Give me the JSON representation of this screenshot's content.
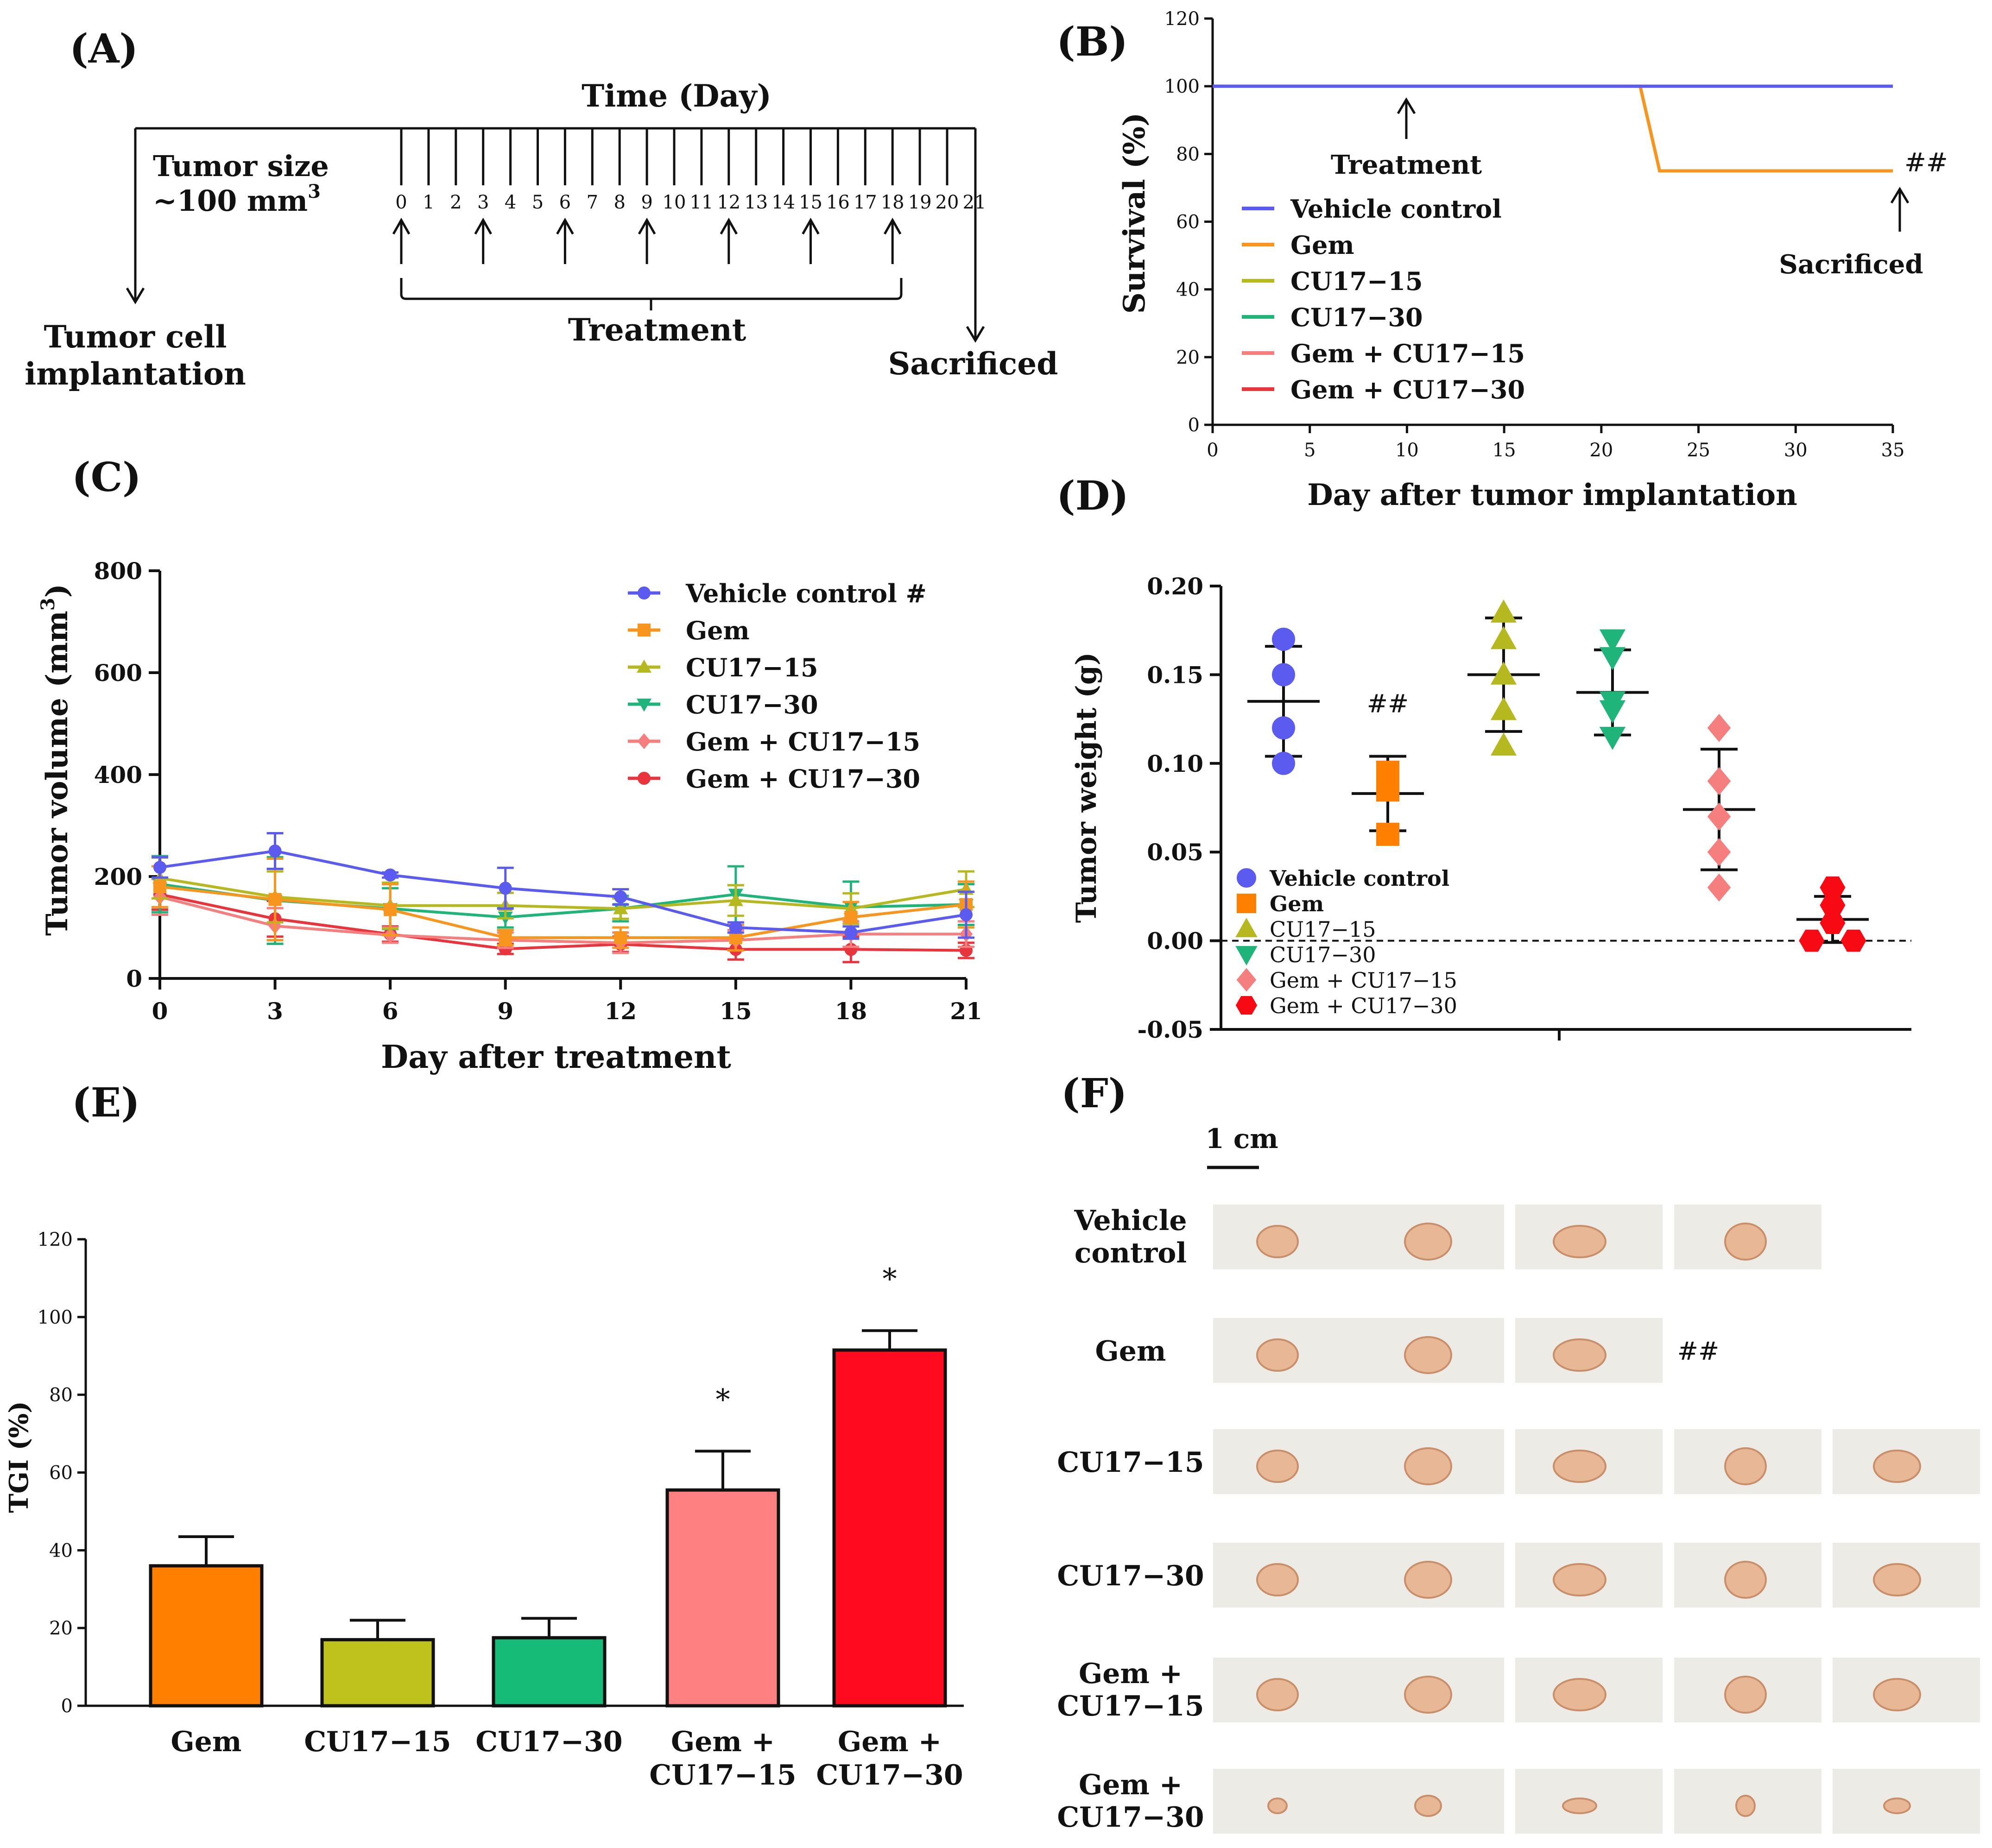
{
  "panel_labels": {
    "a": "(A)",
    "b": "(B)",
    "c": "(C)",
    "d": "(D)",
    "e": "(E)",
    "f": "(F)"
  },
  "colors": {
    "vehicle": "#5b5bf0",
    "gem": "#f7951f",
    "cu15": "#b5b81f",
    "cu30": "#1fb47a",
    "gemcu15": "#f57f7f",
    "gemcu30": "#e8343c",
    "bar_gem": "#ff7f00",
    "bar_cu15": "#bfc21c",
    "bar_cu30": "#16bb77",
    "bar_gemcu15": "#ff8080",
    "bar_gemcu30": "#ff0a1e",
    "photo_bg": "#ecebe6",
    "tumor": "#e8b896"
  },
  "timeline": {
    "title": "Time (Day)",
    "tumor_size_line1": "Tumor size",
    "tumor_size_line2": "~100 mm",
    "tumor_size_sup": "3",
    "implant_line1": "Tumor cell",
    "implant_line2": "implantation",
    "treatment": "Treatment",
    "sacrificed": "Sacrificed",
    "days": [
      "0",
      "1",
      "2",
      "3",
      "4",
      "5",
      "6",
      "7",
      "8",
      "9",
      "10",
      "11",
      "12",
      "13",
      "14",
      "15",
      "16",
      "17",
      "18",
      "19",
      "20",
      "21"
    ],
    "treatment_days": [
      "0",
      "3",
      "6",
      "9",
      "12",
      "15",
      "18"
    ]
  },
  "chart_data": [
    {
      "panel": "B",
      "type": "line",
      "title": "",
      "xlabel": "Day after tumor implantation",
      "ylabel": "Survival (%)",
      "xlim": [
        0,
        35
      ],
      "ylim": [
        0,
        120
      ],
      "xticks": [
        0,
        5,
        10,
        15,
        20,
        25,
        30,
        35
      ],
      "yticks": [
        0,
        20,
        40,
        60,
        80,
        100,
        120
      ],
      "series": [
        {
          "name": "Vehicle control",
          "color": "#5b5bf0",
          "x": [
            0,
            22,
            35
          ],
          "y": [
            100,
            100,
            100
          ]
        },
        {
          "name": "Gem",
          "color": "#f7951f",
          "x": [
            0,
            22,
            23,
            35
          ],
          "y": [
            100,
            100,
            75,
            75
          ]
        },
        {
          "name": "CU17−15",
          "color": "#b5b81f",
          "x": [
            0,
            35
          ],
          "y": [
            100,
            100
          ]
        },
        {
          "name": "CU17−30",
          "color": "#1fb47a",
          "x": [
            0,
            35
          ],
          "y": [
            100,
            100
          ]
        },
        {
          "name": "Gem + CU17−15",
          "color": "#f57f7f",
          "x": [
            0,
            35
          ],
          "y": [
            100,
            100
          ]
        },
        {
          "name": "Gem + CU17−30",
          "color": "#e8343c",
          "x": [
            0,
            35
          ],
          "y": [
            100,
            100
          ]
        }
      ],
      "annotations": {
        "treatment": "Treatment",
        "sacrificed": "Sacrificed",
        "gem_mark": "##"
      }
    },
    {
      "panel": "C",
      "type": "line",
      "title": "",
      "xlabel": "Day after treatment",
      "ylabel": "Tumor volume (mm",
      "ylabel_sup": "3",
      "ylabel_end": ")",
      "xlim": [
        0,
        21
      ],
      "ylim": [
        0,
        800
      ],
      "xticks": [
        0,
        3,
        6,
        9,
        12,
        15,
        18,
        21
      ],
      "yticks": [
        0,
        200,
        400,
        600,
        800
      ],
      "series": [
        {
          "name": "Vehicle control #",
          "color": "#5b5bf0",
          "marker": "circle",
          "x": [
            0,
            3,
            6,
            9,
            12,
            15,
            18,
            21
          ],
          "y": [
            218,
            250,
            203,
            177,
            160,
            100,
            90,
            125
          ],
          "err": [
            20,
            35,
            5,
            40,
            15,
            10,
            12,
            45
          ]
        },
        {
          "name": "Gem",
          "color": "#f7951f",
          "marker": "square",
          "x": [
            0,
            3,
            6,
            9,
            12,
            15,
            18,
            21
          ],
          "y": [
            180,
            155,
            135,
            80,
            80,
            80,
            120,
            145
          ],
          "err": [
            40,
            80,
            50,
            15,
            20,
            25,
            30,
            45
          ]
        },
        {
          "name": "CU17−15",
          "color": "#b5b81f",
          "marker": "triangle",
          "x": [
            0,
            3,
            6,
            9,
            12,
            15,
            18,
            21
          ],
          "y": [
            197,
            160,
            143,
            143,
            137,
            153,
            137,
            175
          ],
          "err": [
            40,
            50,
            45,
            25,
            20,
            30,
            30,
            35
          ]
        },
        {
          "name": "CU17−30",
          "color": "#1fb47a",
          "marker": "triangle-down",
          "x": [
            0,
            3,
            6,
            9,
            12,
            15,
            18,
            21
          ],
          "y": [
            185,
            153,
            137,
            120,
            137,
            165,
            140,
            145
          ],
          "err": [
            55,
            85,
            40,
            20,
            25,
            55,
            50,
            40
          ]
        },
        {
          "name": "Gem + CU17−15",
          "color": "#f57f7f",
          "marker": "diamond",
          "x": [
            0,
            3,
            6,
            9,
            12,
            15,
            18,
            21
          ],
          "y": [
            160,
            103,
            85,
            75,
            70,
            75,
            87,
            87
          ],
          "err": [
            35,
            35,
            15,
            15,
            20,
            20,
            25,
            25
          ]
        },
        {
          "name": "Gem + CU17−30",
          "color": "#e8343c",
          "marker": "circle",
          "x": [
            0,
            3,
            6,
            9,
            12,
            15,
            18,
            21
          ],
          "y": [
            165,
            117,
            87,
            58,
            67,
            57,
            57,
            55
          ],
          "err": [
            30,
            35,
            15,
            10,
            15,
            20,
            25,
            15
          ]
        }
      ]
    },
    {
      "panel": "D",
      "type": "scatter",
      "title": "",
      "xlabel": "",
      "ylabel": "Tumor weight (g)",
      "ylim": [
        -0.05,
        0.2
      ],
      "yticks": [
        "-0.05",
        "0.00",
        "0.05",
        "0.10",
        "0.15",
        "0.20"
      ],
      "groups": [
        {
          "name": "Vehicle control",
          "color": "#5b5bf0",
          "marker": "circle",
          "points": [
            0.17,
            0.15,
            0.12,
            0.1
          ],
          "mean": 0.135,
          "sd": 0.031
        },
        {
          "name": "Gem",
          "color": "#ff7f00",
          "marker": "square",
          "points": [
            0.095,
            0.085,
            0.06
          ],
          "mean": 0.083,
          "sd": 0.021,
          "note": "##"
        },
        {
          "name": "CU17−15",
          "color": "#b5b81f",
          "marker": "triangle",
          "points": [
            0.185,
            0.17,
            0.15,
            0.13,
            0.11
          ],
          "mean": 0.15,
          "sd": 0.032
        },
        {
          "name": "CU17−30",
          "color": "#1fb47a",
          "marker": "triangle-down",
          "points": [
            0.17,
            0.16,
            0.135,
            0.13,
            0.115
          ],
          "mean": 0.14,
          "sd": 0.024
        },
        {
          "name": "Gem + CU17−15",
          "color": "#f57f7f",
          "marker": "diamond",
          "points": [
            0.12,
            0.09,
            0.07,
            0.05,
            0.03
          ],
          "mean": 0.074,
          "sd": 0.034
        },
        {
          "name": "Gem + CU17−30",
          "color": "#f80a14",
          "marker": "hexagon",
          "points": [
            0.03,
            0.02,
            0.01,
            0.0,
            0.0
          ],
          "mean": 0.012,
          "sd": 0.013
        }
      ]
    },
    {
      "panel": "E",
      "type": "bar",
      "title": "",
      "xlabel": "",
      "ylabel": "TGI (%)",
      "ylim": [
        0,
        120
      ],
      "yticks": [
        0,
        20,
        40,
        60,
        80,
        100,
        120
      ],
      "categories": [
        "Gem",
        "CU17−15",
        "CU17−30",
        "Gem + CU17−15",
        "Gem + CU17−30"
      ],
      "category_lines": [
        [
          "Gem"
        ],
        [
          "CU17−15"
        ],
        [
          "CU17−30"
        ],
        [
          "Gem +",
          "CU17−15"
        ],
        [
          "Gem +",
          "CU17−30"
        ]
      ],
      "values": [
        36,
        17,
        17.5,
        55.5,
        91.5
      ],
      "errors": [
        7.5,
        5,
        5,
        10,
        5
      ],
      "significance": [
        "",
        "",
        "",
        "*",
        "*"
      ]
    }
  ],
  "panel_f": {
    "scale_label": "1 cm",
    "gem_mark": "##",
    "rows": [
      {
        "label": [
          "Vehicle",
          "control"
        ],
        "photos": 4
      },
      {
        "label": [
          "Gem"
        ],
        "photos": 3
      },
      {
        "label": [
          "CU17−15"
        ],
        "photos": 5
      },
      {
        "label": [
          "CU17−30"
        ],
        "photos": 5
      },
      {
        "label": [
          "Gem +",
          "CU17−15"
        ],
        "photos": 5
      },
      {
        "label": [
          "Gem +",
          "CU17−30"
        ],
        "photos": 5
      }
    ]
  }
}
